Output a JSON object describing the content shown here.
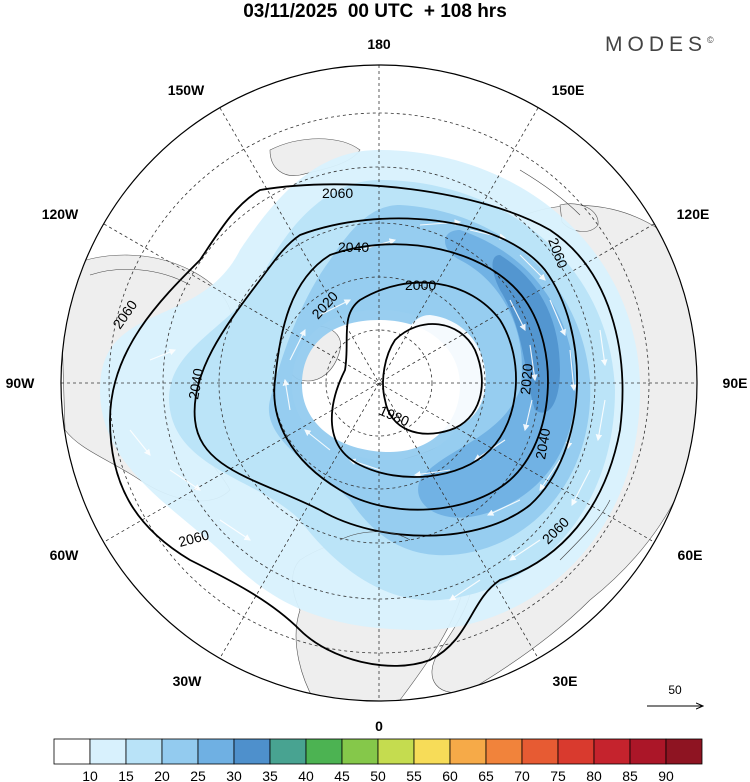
{
  "header": {
    "title": "03/11/2025  00 UTC  + 108 hrs",
    "brand": "MODES",
    "brand_mark": "©"
  },
  "map": {
    "projection": "north polar stereographic",
    "longitude_labels": [
      "180",
      "150E",
      "120E",
      "90E",
      "60E",
      "30E",
      "0",
      "30W",
      "60W",
      "90W",
      "120W",
      "150W"
    ],
    "contour_labels": [
      "2060",
      "2040",
      "2020",
      "2000",
      "1980",
      "2060",
      "2040",
      "2020",
      "2060",
      "2040",
      "2060",
      "2060"
    ],
    "wind_reference_label": "50"
  },
  "colorbar": {
    "labels": [
      "10",
      "15",
      "20",
      "25",
      "30",
      "35",
      "40",
      "45",
      "50",
      "55",
      "60",
      "65",
      "70",
      "75",
      "80",
      "85",
      "90"
    ],
    "colors": [
      "#ffffff",
      "#d8f1fd",
      "#b9e3f8",
      "#93cbef",
      "#6fb0e3",
      "#4e90cc",
      "#48a391",
      "#4cb352",
      "#85c84a",
      "#c5dc4f",
      "#f7dc58",
      "#f6aa48",
      "#f1833b",
      "#e75b33",
      "#d93a2e",
      "#c5232d",
      "#ab1628",
      "#8e1422"
    ]
  }
}
